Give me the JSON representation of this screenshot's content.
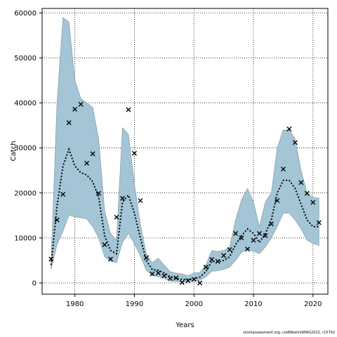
{
  "credit": "stockassessment.org, codWestIrsWWG2022, r15702",
  "chart_data": {
    "type": "line",
    "xlabel": "Years",
    "ylabel": "Catch",
    "xlim": [
      1974.5,
      2022.5
    ],
    "ylim": [
      -2500,
      61000
    ],
    "xticks": [
      1980,
      1990,
      2000,
      2010,
      2020
    ],
    "yticks": [
      0,
      10000,
      20000,
      30000,
      40000,
      50000,
      60000
    ],
    "grid": true,
    "grid_style": "dotted",
    "colors": {
      "band": "#a3c5d6",
      "band_edge": "#7f8f9a",
      "estimate": "#000000",
      "observed": "#000000"
    },
    "x": [
      1976,
      1977,
      1978,
      1979,
      1980,
      1981,
      1982,
      1983,
      1984,
      1985,
      1986,
      1987,
      1988,
      1989,
      1990,
      1991,
      1992,
      1993,
      1994,
      1995,
      1996,
      1997,
      1998,
      1999,
      2000,
      2001,
      2002,
      2003,
      2004,
      2005,
      2006,
      2007,
      2008,
      2009,
      2010,
      2011,
      2012,
      2013,
      2014,
      2015,
      2016,
      2017,
      2018,
      2019,
      2020,
      2021
    ],
    "series": [
      {
        "role": "upper",
        "values": [
          4500,
          40000,
          59000,
          58000,
          45000,
          41000,
          40000,
          39000,
          32000,
          16000,
          11000,
          9500,
          34500,
          33000,
          22000,
          13000,
          6500,
          4500,
          5500,
          4000,
          2500,
          2200,
          2000,
          1600,
          2200,
          2300,
          4000,
          7200,
          7000,
          7200,
          8000,
          14000,
          18500,
          21000,
          18000,
          12500,
          18000,
          20000,
          30000,
          34000,
          34000,
          32000,
          25000,
          20000,
          19000,
          18800
        ]
      },
      {
        "role": "lower",
        "values": [
          3000,
          8500,
          11500,
          15000,
          14700,
          14500,
          14200,
          12500,
          10000,
          5800,
          4800,
          4500,
          9000,
          11000,
          8700,
          6000,
          2800,
          1700,
          1400,
          1000,
          400,
          300,
          200,
          300,
          400,
          600,
          1300,
          2600,
          2700,
          3000,
          3500,
          5000,
          6800,
          7500,
          7000,
          6500,
          8000,
          10000,
          12500,
          15500,
          15500,
          14000,
          12000,
          9500,
          8800,
          8300
        ]
      },
      {
        "role": "estimate",
        "values": [
          4000,
          17000,
          26000,
          29700,
          26000,
          24500,
          24000,
          22500,
          19000,
          10500,
          7200,
          6500,
          18000,
          19500,
          15500,
          10000,
          5000,
          3000,
          2800,
          2200,
          1400,
          1000,
          800,
          700,
          900,
          1300,
          2500,
          4800,
          4700,
          5000,
          5800,
          8500,
          10500,
          12000,
          11000,
          9000,
          11000,
          14000,
          20000,
          22800,
          22800,
          21000,
          17500,
          14000,
          12500,
          12500
        ]
      },
      {
        "role": "observed",
        "x": [
          1976,
          1977,
          1978,
          1979,
          1980,
          1981,
          1982,
          1983,
          1984,
          1985,
          1986,
          1987,
          1988,
          1989,
          1990,
          1991,
          1992,
          1993,
          1994,
          1995,
          1996,
          1997,
          1998,
          1999,
          2000,
          2001,
          2002,
          2003,
          2004,
          2005,
          2006,
          2007,
          2008,
          2009,
          2010,
          2011,
          2012,
          2013,
          2014,
          2015,
          2016,
          2017,
          2018,
          2019,
          2020,
          2021
        ],
        "values": [
          5300,
          14000,
          19700,
          35600,
          38600,
          39700,
          26600,
          28700,
          19900,
          8500,
          5300,
          14600,
          18800,
          38500,
          28800,
          18300,
          5600,
          2000,
          2200,
          1600,
          1000,
          1100,
          100,
          500,
          800,
          0,
          3500,
          5200,
          4800,
          6100,
          7400,
          11000,
          10000,
          7500,
          9500,
          11000,
          10500,
          13100,
          18300,
          25300,
          34200,
          31200,
          22300,
          19900,
          17900,
          13400
        ]
      }
    ]
  }
}
